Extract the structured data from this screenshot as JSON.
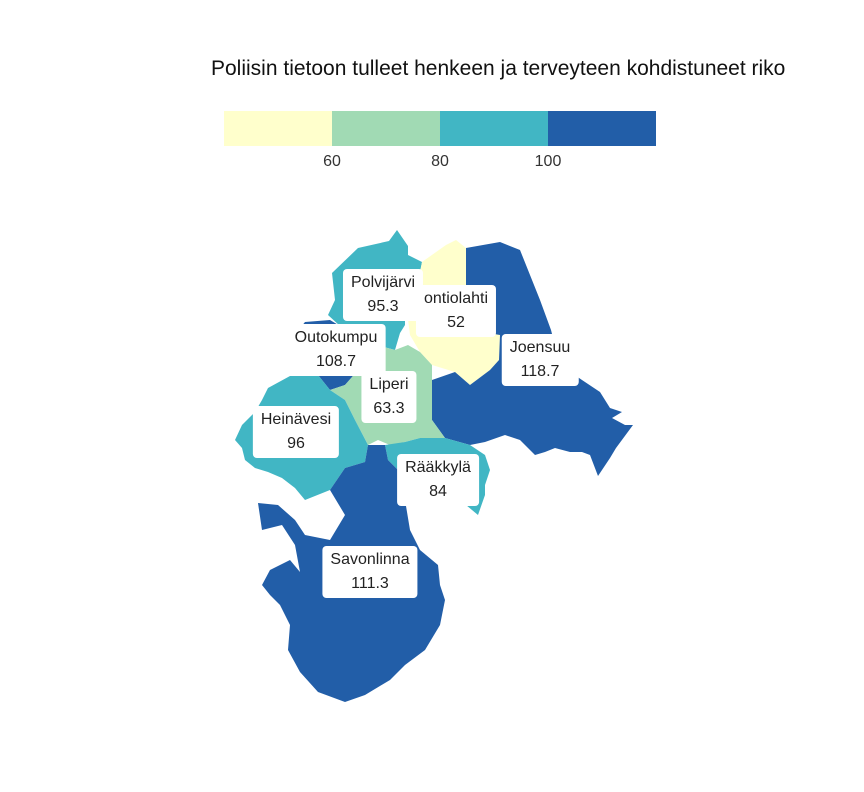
{
  "title": "Poliisin tietoon tulleet henkeen ja terveyteen kohdistuneet riko",
  "legend": {
    "colors": [
      "#ffffcc",
      "#a1dab4",
      "#41b6c4",
      "#225ea8"
    ],
    "ticks": [
      "60",
      "80",
      "100"
    ]
  },
  "chart_data": {
    "type": "choropleth",
    "title": "Poliisin tietoon tulleet henkeen ja terveyteen kohdistuneet riko",
    "bins": [
      60,
      80,
      100
    ],
    "colors": [
      "#ffffcc",
      "#a1dab4",
      "#41b6c4",
      "#225ea8"
    ],
    "regions": [
      {
        "name": "Polvijärvi",
        "value": "95.3"
      },
      {
        "name": "Kontiolahti",
        "value": "52"
      },
      {
        "name": "Outokumpu",
        "value": "108.7"
      },
      {
        "name": "Joensuu",
        "value": "118.7"
      },
      {
        "name": "Liperi",
        "value": "63.3"
      },
      {
        "name": "Heinävesi",
        "value": "96"
      },
      {
        "name": "Rääkkylä",
        "value": "84"
      },
      {
        "name": "Savonlinna",
        "value": "111.3"
      }
    ]
  },
  "labels": {
    "polvijarvi": {
      "name": "Polvijärvi",
      "value": "95.3"
    },
    "kontiolahti": {
      "name": "ontiolahti",
      "value": "52"
    },
    "outokumpu": {
      "name": "Outokumpu",
      "value": "108.7"
    },
    "joensuu": {
      "name": "Joensuu",
      "value": "118.7"
    },
    "liperi": {
      "name": "Liperi",
      "value": "63.3"
    },
    "heinavesi": {
      "name": "Heinävesi",
      "value": "96"
    },
    "raakkyla": {
      "name": "Rääkkylä",
      "value": "84"
    },
    "savonlinna": {
      "name": "Savonlinna",
      "value": "111.3"
    }
  }
}
